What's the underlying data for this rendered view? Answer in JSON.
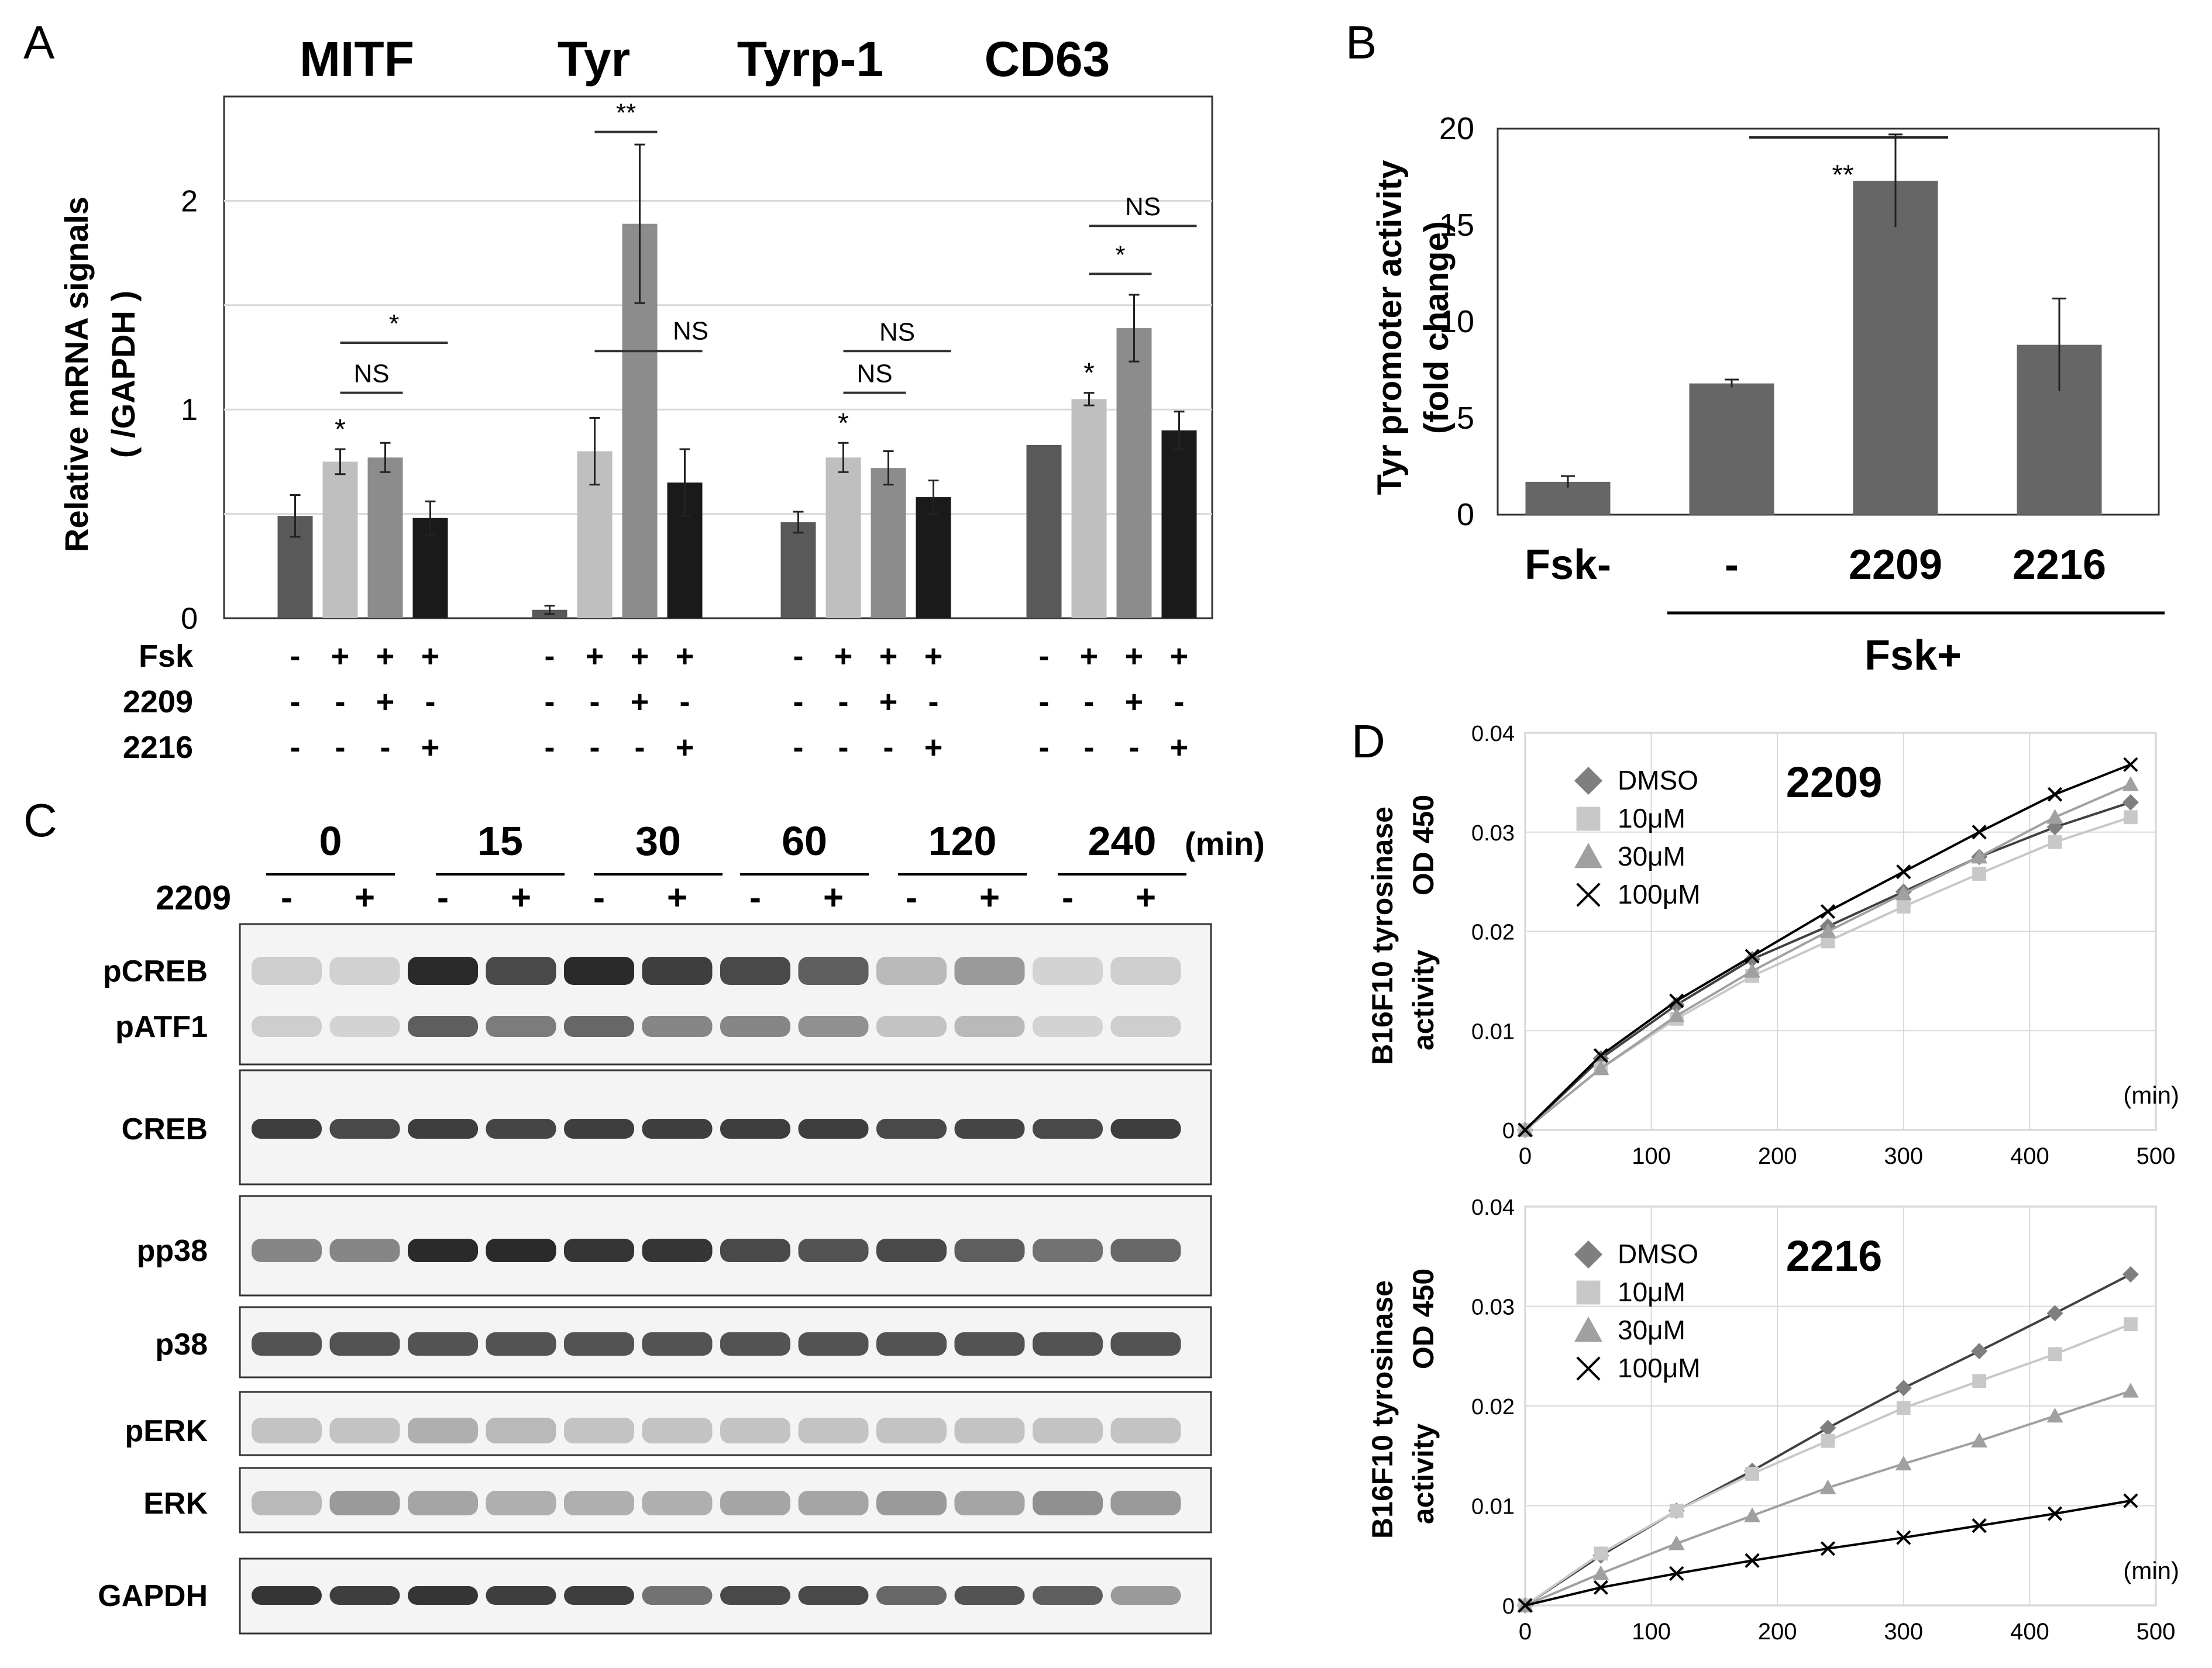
{
  "panels": {
    "A": {
      "letter": "A",
      "ylabel_line1": "Relative mRNA signals",
      "ylabel_line2": "( /GAPDH )",
      "row_labels": [
        "Fsk",
        "2209",
        "2216"
      ],
      "chart_data": {
        "type": "bar",
        "ylim": [
          0,
          2.5
        ],
        "yticks": [
          "0",
          "1",
          "2"
        ],
        "groups": [
          {
            "name": "MITF",
            "bars": [
              {
                "value": 0.49,
                "err": 0.1,
                "color": "#595959"
              },
              {
                "value": 0.75,
                "err": 0.06,
                "color": "#bfbfbf",
                "mark": "*"
              },
              {
                "value": 0.77,
                "err": 0.07,
                "color": "#8c8c8c"
              },
              {
                "value": 0.48,
                "err": 0.08,
                "color": "#1a1a1a"
              }
            ],
            "signs": [
              [
                "-",
                "+",
                "+",
                "+"
              ],
              [
                "-",
                "-",
                "+",
                "-"
              ],
              [
                "-",
                "-",
                "-",
                "+"
              ]
            ],
            "brackets": [
              {
                "from": 1,
                "to": 2,
                "text": "NS",
                "level": 1.08
              },
              {
                "from": 1,
                "to": 3,
                "text": "*",
                "level": 1.32
              }
            ]
          },
          {
            "name": "Tyr",
            "bars": [
              {
                "value": 0.04,
                "err": 0.02,
                "color": "#595959"
              },
              {
                "value": 0.8,
                "err": 0.16,
                "color": "#bfbfbf"
              },
              {
                "value": 1.89,
                "err": 0.38,
                "color": "#8c8c8c"
              },
              {
                "value": 0.65,
                "err": 0.16,
                "color": "#1a1a1a"
              }
            ],
            "signs": [
              [
                "-",
                "+",
                "+",
                "+"
              ],
              [
                "-",
                "-",
                "+",
                "-"
              ],
              [
                "-",
                "-",
                "-",
                "+"
              ]
            ],
            "brackets": [
              {
                "from": 1,
                "to": 2,
                "text": "**",
                "level": 2.33
              },
              {
                "from": 1,
                "to": 3,
                "text": "NS",
                "level": 1.28
              }
            ]
          },
          {
            "name": "Tyrp-1",
            "bars": [
              {
                "value": 0.46,
                "err": 0.05,
                "color": "#595959"
              },
              {
                "value": 0.77,
                "err": 0.07,
                "color": "#bfbfbf",
                "mark": "*"
              },
              {
                "value": 0.72,
                "err": 0.08,
                "color": "#8c8c8c"
              },
              {
                "value": 0.58,
                "err": 0.08,
                "color": "#1a1a1a"
              }
            ],
            "signs": [
              [
                "-",
                "+",
                "+",
                "+"
              ],
              [
                "-",
                "-",
                "+",
                "-"
              ],
              [
                "-",
                "-",
                "-",
                "+"
              ]
            ],
            "brackets": [
              {
                "from": 1,
                "to": 2,
                "text": "NS",
                "level": 1.08
              },
              {
                "from": 1,
                "to": 3,
                "text": "NS",
                "level": 1.28
              }
            ]
          },
          {
            "name": "CD63",
            "bars": [
              {
                "value": 0.83,
                "err": 0.0,
                "color": "#595959"
              },
              {
                "value": 1.05,
                "err": 0.03,
                "color": "#bfbfbf",
                "mark": "*"
              },
              {
                "value": 1.39,
                "err": 0.16,
                "color": "#8c8c8c"
              },
              {
                "value": 0.9,
                "err": 0.09,
                "color": "#1a1a1a"
              }
            ],
            "signs": [
              [
                "-",
                "+",
                "+",
                "+"
              ],
              [
                "-",
                "-",
                "+",
                "-"
              ],
              [
                "-",
                "-",
                "-",
                "+"
              ]
            ],
            "brackets": [
              {
                "from": 1,
                "to": 2,
                "text": "*",
                "level": 1.65
              },
              {
                "from": 1,
                "to": 3,
                "text": "NS",
                "level": 1.88
              }
            ]
          }
        ]
      }
    },
    "B": {
      "letter": "B",
      "ylabel_line1": "Tyr promoter activity",
      "ylabel_line2": "(fold change)",
      "fsk_plus": "Fsk+",
      "chart_data": {
        "type": "bar",
        "ylim": [
          0,
          20
        ],
        "yticks": [
          "0",
          "5",
          "10",
          "15",
          "20"
        ],
        "categories": [
          "Fsk-",
          "-",
          "2209",
          "2216"
        ],
        "values": [
          1.7,
          6.8,
          17.3,
          8.8
        ],
        "errors": [
          0.3,
          0.2,
          2.4,
          2.4
        ],
        "annotation": "**"
      }
    },
    "C": {
      "letter": "C",
      "time_labels": [
        "0",
        "15",
        "30",
        "60",
        "120",
        "240"
      ],
      "time_unit": "(min)",
      "treatment_label": "2209",
      "lane_signs": [
        "-",
        "+",
        "-",
        "+",
        "-",
        "+",
        "-",
        "+",
        "-",
        "+",
        "-",
        "+"
      ],
      "band_labels": [
        "pCREB",
        "pATF1",
        "CREB",
        "pp38",
        "p38",
        "pERK",
        "ERK",
        "GAPDH"
      ],
      "blot_intensity": {
        "pCREB": [
          0.15,
          0.13,
          0.95,
          0.8,
          0.95,
          0.85,
          0.8,
          0.7,
          0.25,
          0.4,
          0.12,
          0.15
        ],
        "pATF1": [
          0.15,
          0.12,
          0.7,
          0.55,
          0.65,
          0.5,
          0.5,
          0.45,
          0.2,
          0.25,
          0.12,
          0.15
        ],
        "CREB": [
          0.85,
          0.8,
          0.85,
          0.82,
          0.85,
          0.85,
          0.85,
          0.85,
          0.8,
          0.82,
          0.8,
          0.85
        ],
        "pp38": [
          0.5,
          0.5,
          0.95,
          0.95,
          0.9,
          0.9,
          0.8,
          0.75,
          0.8,
          0.7,
          0.6,
          0.65
        ],
        "p38": [
          0.75,
          0.75,
          0.75,
          0.75,
          0.75,
          0.75,
          0.75,
          0.75,
          0.75,
          0.75,
          0.75,
          0.75
        ],
        "pERK": [
          0.2,
          0.2,
          0.3,
          0.25,
          0.2,
          0.2,
          0.2,
          0.2,
          0.2,
          0.2,
          0.2,
          0.2
        ],
        "ERK": [
          0.25,
          0.4,
          0.35,
          0.3,
          0.3,
          0.3,
          0.35,
          0.35,
          0.4,
          0.35,
          0.45,
          0.4
        ],
        "GAPDH": [
          0.9,
          0.85,
          0.9,
          0.85,
          0.85,
          0.6,
          0.8,
          0.8,
          0.65,
          0.75,
          0.7,
          0.4
        ]
      }
    },
    "D": {
      "letter": "D",
      "ylabel_line1": "B16F10  tyrosinase",
      "ylabel_line2a": "activity",
      "ylabel_line2b": "OD 450",
      "x_unit": "(min)",
      "legend": [
        "DMSO",
        "10μM",
        "30μM",
        "100μM"
      ],
      "chart_data": [
        {
          "type": "line",
          "title": "2209",
          "x": [
            0,
            60,
            120,
            180,
            240,
            300,
            360,
            420,
            480
          ],
          "xticks": [
            "0",
            "100",
            "200",
            "300",
            "400",
            "500"
          ],
          "yticks": [
            "0",
            "0.01",
            "0.02",
            "0.03",
            "0.04"
          ],
          "xlim": [
            0,
            500
          ],
          "ylim": [
            0,
            0.04
          ],
          "series": [
            {
              "name": "DMSO",
              "marker": "diamond",
              "color": "#7f7f7f",
              "values": [
                0,
                0.0072,
                0.0126,
                0.0172,
                0.0205,
                0.024,
                0.0275,
                0.0305,
                0.033
              ]
            },
            {
              "name": "10μM",
              "marker": "square",
              "color": "#c8c8c8",
              "values": [
                0,
                0.0062,
                0.0112,
                0.0155,
                0.019,
                0.0225,
                0.0258,
                0.029,
                0.0315
              ]
            },
            {
              "name": "30μM",
              "marker": "triangle",
              "color": "#a0a0a0",
              "values": [
                0,
                0.0062,
                0.0115,
                0.016,
                0.02,
                0.0238,
                0.0275,
                0.0315,
                0.0348
              ]
            },
            {
              "name": "100μM",
              "marker": "x",
              "color": "#000000",
              "values": [
                0,
                0.0075,
                0.013,
                0.0175,
                0.022,
                0.026,
                0.03,
                0.0338,
                0.0368
              ]
            }
          ]
        },
        {
          "type": "line",
          "title": "2216",
          "x": [
            0,
            60,
            120,
            180,
            240,
            300,
            360,
            420,
            480
          ],
          "xticks": [
            "0",
            "100",
            "200",
            "300",
            "400",
            "500"
          ],
          "yticks": [
            "0",
            "0.01",
            "0.02",
            "0.03",
            "0.04"
          ],
          "xlim": [
            0,
            500
          ],
          "ylim": [
            0,
            0.04
          ],
          "series": [
            {
              "name": "DMSO",
              "marker": "diamond",
              "color": "#7f7f7f",
              "values": [
                0,
                0.005,
                0.0095,
                0.0135,
                0.0178,
                0.0218,
                0.0255,
                0.0293,
                0.0332
              ]
            },
            {
              "name": "10μM",
              "marker": "square",
              "color": "#c8c8c8",
              "values": [
                0,
                0.0052,
                0.0095,
                0.0132,
                0.0165,
                0.0198,
                0.0225,
                0.0252,
                0.0282
              ]
            },
            {
              "name": "30μM",
              "marker": "triangle",
              "color": "#a0a0a0",
              "values": [
                0,
                0.0032,
                0.0062,
                0.009,
                0.0118,
                0.0142,
                0.0165,
                0.019,
                0.0215
              ]
            },
            {
              "name": "100μM",
              "marker": "x",
              "color": "#000000",
              "values": [
                0,
                0.0018,
                0.0032,
                0.0045,
                0.0057,
                0.0068,
                0.008,
                0.0092,
                0.0105
              ]
            }
          ]
        }
      ]
    }
  }
}
